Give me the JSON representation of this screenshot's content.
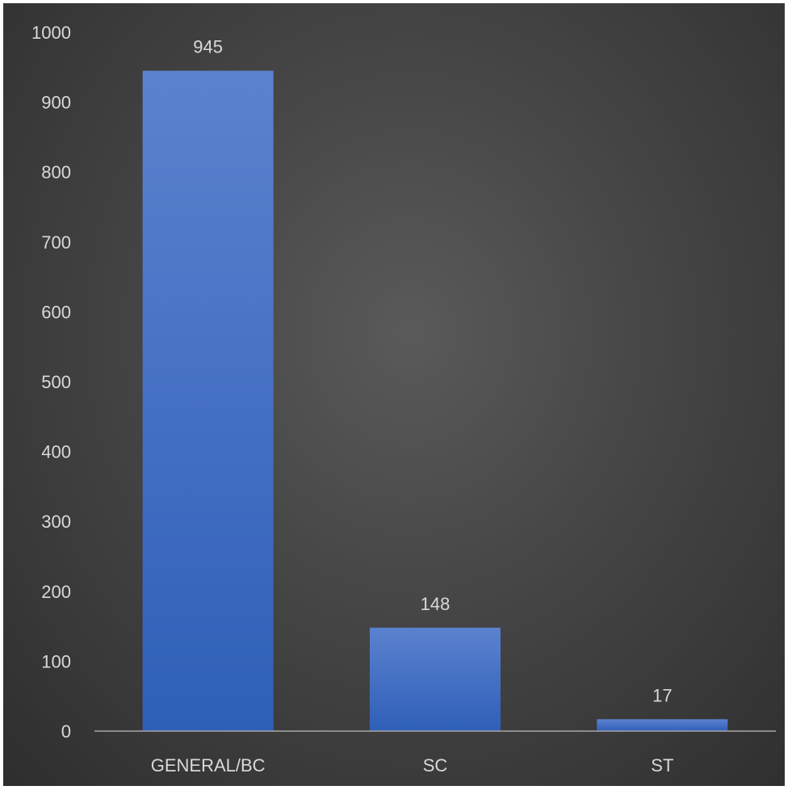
{
  "chart_data": {
    "type": "bar",
    "title": "",
    "xlabel": "",
    "ylabel": "",
    "categories": [
      "GENERAL/BC",
      "SC",
      "ST"
    ],
    "values": [
      945,
      148,
      17
    ],
    "data_labels": [
      "945",
      "148",
      "17"
    ],
    "ylim": [
      0,
      1000
    ],
    "y_ticks": [
      0,
      100,
      200,
      300,
      400,
      500,
      600,
      700,
      800,
      900,
      1000
    ],
    "grid": false,
    "legend": "none",
    "colors": {
      "bar_top": "#5b82cf",
      "bar_bottom": "#2f5fb8",
      "axis_line": "#a6a6a6",
      "text": "#d9d9d9",
      "background_center": "#5a5a5a",
      "background_edge": "#2e2e2e"
    }
  }
}
